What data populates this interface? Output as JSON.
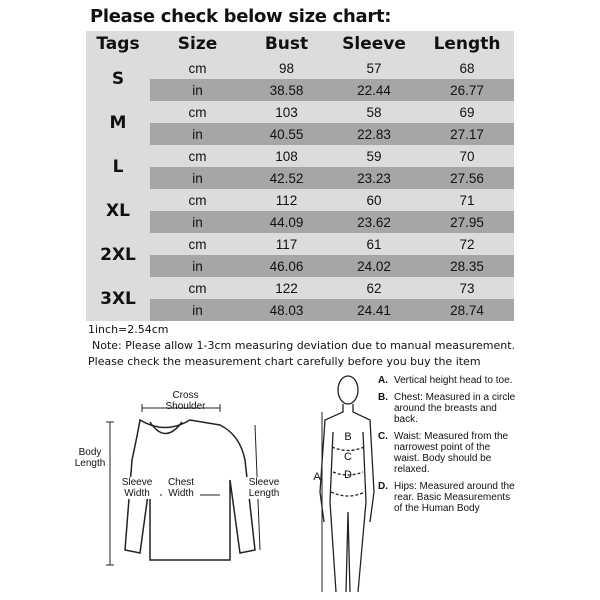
{
  "title": "Please check below size chart:",
  "table": {
    "headers": [
      "Tags",
      "Size",
      "Bust",
      "Sleeve",
      "Length"
    ],
    "rows": [
      {
        "tag": "S",
        "cm": {
          "unit": "cm",
          "bust": "98",
          "sleeve": "57",
          "length": "68"
        },
        "in": {
          "unit": "in",
          "bust": "38.58",
          "sleeve": "22.44",
          "length": "26.77"
        }
      },
      {
        "tag": "M",
        "cm": {
          "unit": "cm",
          "bust": "103",
          "sleeve": "58",
          "length": "69"
        },
        "in": {
          "unit": "in",
          "bust": "40.55",
          "sleeve": "22.83",
          "length": "27.17"
        }
      },
      {
        "tag": "L",
        "cm": {
          "unit": "cm",
          "bust": "108",
          "sleeve": "59",
          "length": "70"
        },
        "in": {
          "unit": "in",
          "bust": "42.52",
          "sleeve": "23.23",
          "length": "27.56"
        }
      },
      {
        "tag": "XL",
        "cm": {
          "unit": "cm",
          "bust": "112",
          "sleeve": "60",
          "length": "71"
        },
        "in": {
          "unit": "in",
          "bust": "44.09",
          "sleeve": "23.62",
          "length": "27.95"
        }
      },
      {
        "tag": "2XL",
        "cm": {
          "unit": "cm",
          "bust": "117",
          "sleeve": "61",
          "length": "72"
        },
        "in": {
          "unit": "in",
          "bust": "46.06",
          "sleeve": "24.02",
          "length": "28.35"
        }
      },
      {
        "tag": "3XL",
        "cm": {
          "unit": "cm",
          "bust": "122",
          "sleeve": "62",
          "length": "73"
        },
        "in": {
          "unit": "in",
          "bust": "48.03",
          "sleeve": "24.41",
          "length": "28.74"
        }
      }
    ]
  },
  "notes": [
    "1inch=2.54cm",
    "Note: Please allow 1-3cm measuring deviation due to manual measurement.",
    "Please check the measurement chart carefully before you buy the item"
  ],
  "sweater_labels": {
    "cross_shoulder": "Cross Shoulder",
    "body_length": "Body Length",
    "sleeve_width": "Sleeve Width",
    "chest_width": "Chest Width",
    "sleeve_length": "Sleeve Length"
  },
  "body_letters": {
    "a": "A",
    "b": "B",
    "c": "C",
    "d": "D"
  },
  "legend": [
    {
      "key": "A.",
      "text": "Vertical height head to toe."
    },
    {
      "key": "B.",
      "text": "Chest: Measured in a circle around the breasts and back."
    },
    {
      "key": "C.",
      "text": "Waist: Measured from the narrowest point of the waist. Body should be relaxed."
    },
    {
      "key": "D.",
      "text": "Hips: Measured around the rear. Basic Measurements of the Human Body"
    }
  ],
  "colors": {
    "table_bg": "#dcdcdc",
    "inch_row_bg": "#a8a5a5"
  }
}
